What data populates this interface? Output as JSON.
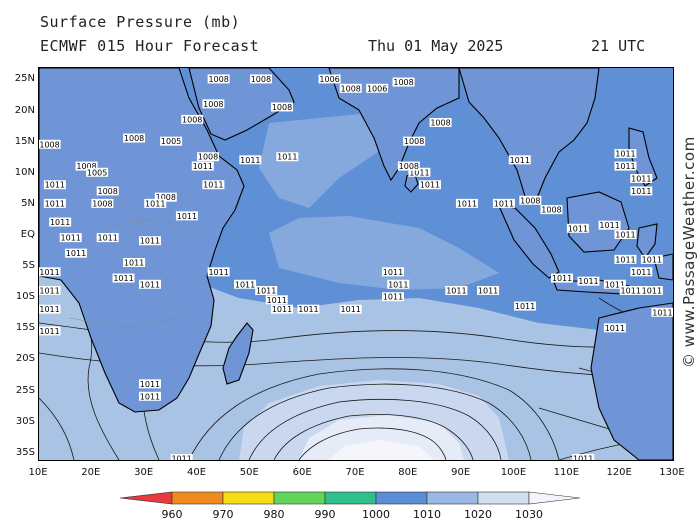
{
  "header": {
    "title": "Surface Pressure (mb)",
    "model": "ECMWF 015 Hour Forecast",
    "date": "Thu 01 May 2025",
    "time": "21 UTC"
  },
  "watermark": "© www.PassageWeather.com",
  "map": {
    "lat_labels": [
      "25N",
      "20N",
      "15N",
      "10N",
      "5N",
      "EQ",
      "5S",
      "10S",
      "15S",
      "20S",
      "25S",
      "30S",
      "35S"
    ],
    "lon_labels": [
      "10E",
      "20E",
      "30E",
      "40E",
      "50E",
      "60E",
      "70E",
      "80E",
      "90E",
      "100E",
      "110E",
      "120E",
      "130E"
    ],
    "isobar_labels": [
      {
        "text": "1008",
        "lon": 44,
        "lat": 25
      },
      {
        "text": "1008",
        "lon": 52,
        "lat": 25
      },
      {
        "text": "1006",
        "lon": 65,
        "lat": 25
      },
      {
        "text": "1008",
        "lon": 69,
        "lat": 23.5
      },
      {
        "text": "1008",
        "lon": 79,
        "lat": 24.5
      },
      {
        "text": "1006",
        "lon": 74,
        "lat": 23.5
      },
      {
        "text": "1008",
        "lon": 56,
        "lat": 20.5
      },
      {
        "text": "1008",
        "lon": 43,
        "lat": 21
      },
      {
        "text": "1008",
        "lon": 39,
        "lat": 18.5
      },
      {
        "text": "1008",
        "lon": 86,
        "lat": 18
      },
      {
        "text": "1008",
        "lon": 28,
        "lat": 15.5
      },
      {
        "text": "1008",
        "lon": 12,
        "lat": 14.5
      },
      {
        "text": "1005",
        "lon": 35,
        "lat": 15
      },
      {
        "text": "1008",
        "lon": 42,
        "lat": 12.5
      },
      {
        "text": "1008",
        "lon": 81,
        "lat": 15
      },
      {
        "text": "1011",
        "lon": 41,
        "lat": 11
      },
      {
        "text": "1011",
        "lon": 50,
        "lat": 12
      },
      {
        "text": "1011",
        "lon": 57,
        "lat": 12.5
      },
      {
        "text": "1008",
        "lon": 19,
        "lat": 11
      },
      {
        "text": "1005",
        "lon": 21,
        "lat": 10
      },
      {
        "text": "1011",
        "lon": 13,
        "lat": 8
      },
      {
        "text": "1008",
        "lon": 23,
        "lat": 7
      },
      {
        "text": "1008",
        "lon": 34,
        "lat": 6
      },
      {
        "text": "1011",
        "lon": 43,
        "lat": 8
      },
      {
        "text": "1011",
        "lon": 32,
        "lat": 5
      },
      {
        "text": "1011",
        "lon": 13,
        "lat": 5
      },
      {
        "text": "1008",
        "lon": 22,
        "lat": 5
      },
      {
        "text": "1011",
        "lon": 38,
        "lat": 3
      },
      {
        "text": "1011",
        "lon": 14,
        "lat": 2
      },
      {
        "text": "1011",
        "lon": 82,
        "lat": 10
      },
      {
        "text": "1008",
        "lon": 80,
        "lat": 11
      },
      {
        "text": "1011",
        "lon": 84,
        "lat": 8
      },
      {
        "text": "1011",
        "lon": 101,
        "lat": 12
      },
      {
        "text": "1011",
        "lon": 121,
        "lat": 13
      },
      {
        "text": "1011",
        "lon": 121,
        "lat": 11
      },
      {
        "text": "1011",
        "lon": 124,
        "lat": 9
      },
      {
        "text": "1011",
        "lon": 124,
        "lat": 7
      },
      {
        "text": "1011",
        "lon": 98,
        "lat": 5
      },
      {
        "text": "1008",
        "lon": 103,
        "lat": 5.5
      },
      {
        "text": "1011",
        "lon": 91,
        "lat": 5
      },
      {
        "text": "1008",
        "lon": 107,
        "lat": 4
      },
      {
        "text": "1011",
        "lon": 112,
        "lat": 1
      },
      {
        "text": "1011",
        "lon": 118,
        "lat": 1.5
      },
      {
        "text": "1011",
        "lon": 121,
        "lat": 0
      },
      {
        "text": "1011",
        "lon": 16,
        "lat": -0.5
      },
      {
        "text": "1011",
        "lon": 23,
        "lat": -0.5
      },
      {
        "text": "1011",
        "lon": 31,
        "lat": -1
      },
      {
        "text": "1011",
        "lon": 17,
        "lat": -3
      },
      {
        "text": "1011",
        "lon": 28,
        "lat": -4.5
      },
      {
        "text": "1011",
        "lon": 26,
        "lat": -7
      },
      {
        "text": "1011",
        "lon": 31,
        "lat": -8
      },
      {
        "text": "1011",
        "lon": 44,
        "lat": -6
      },
      {
        "text": "1011",
        "lon": 49,
        "lat": -8
      },
      {
        "text": "1011",
        "lon": 53,
        "lat": -9
      },
      {
        "text": "1011",
        "lon": 55,
        "lat": -10.5
      },
      {
        "text": "1011",
        "lon": 56,
        "lat": -12
      },
      {
        "text": "1011",
        "lon": 61,
        "lat": -12
      },
      {
        "text": "1011",
        "lon": 69,
        "lat": -12
      },
      {
        "text": "1011",
        "lon": 77,
        "lat": -6
      },
      {
        "text": "1011",
        "lon": 78,
        "lat": -8
      },
      {
        "text": "1011",
        "lon": 77,
        "lat": -10
      },
      {
        "text": "1011",
        "lon": 89,
        "lat": -9
      },
      {
        "text": "1011",
        "lon": 95,
        "lat": -9
      },
      {
        "text": "1011",
        "lon": 102,
        "lat": -11.5
      },
      {
        "text": "1011",
        "lon": 109,
        "lat": -7
      },
      {
        "text": "1011",
        "lon": 114,
        "lat": -7.5
      },
      {
        "text": "1011",
        "lon": 119,
        "lat": -8
      },
      {
        "text": "1011",
        "lon": 122,
        "lat": -9
      },
      {
        "text": "1011",
        "lon": 126,
        "lat": -9
      },
      {
        "text": "1011",
        "lon": 124,
        "lat": -6
      },
      {
        "text": "1011",
        "lon": 121,
        "lat": -4
      },
      {
        "text": "1011",
        "lon": 126,
        "lat": -4
      },
      {
        "text": "1011",
        "lon": 128,
        "lat": -12.5
      },
      {
        "text": "1011",
        "lon": 119,
        "lat": -15
      },
      {
        "text": "1011",
        "lon": 12,
        "lat": -15.5
      },
      {
        "text": "1011",
        "lon": 12,
        "lat": -12
      },
      {
        "text": "1011",
        "lon": 12,
        "lat": -9
      },
      {
        "text": "1011",
        "lon": 12,
        "lat": -6
      },
      {
        "text": "1011",
        "lon": 31,
        "lat": -24
      },
      {
        "text": "1011",
        "lon": 31,
        "lat": -26
      },
      {
        "text": "1011",
        "lon": 37,
        "lat": -36
      },
      {
        "text": "1011",
        "lon": 113,
        "lat": -36
      }
    ]
  },
  "legend": {
    "ticks": [
      "960",
      "970",
      "980",
      "990",
      "1000",
      "1010",
      "1020",
      "1030"
    ],
    "colors": [
      "#e8393f",
      "#f08a1e",
      "#f6dc15",
      "#5fd65a",
      "#2fbf8a",
      "#5b8ed6",
      "#9ab8e2",
      "#d2dff1",
      "#f3f5fb"
    ]
  }
}
